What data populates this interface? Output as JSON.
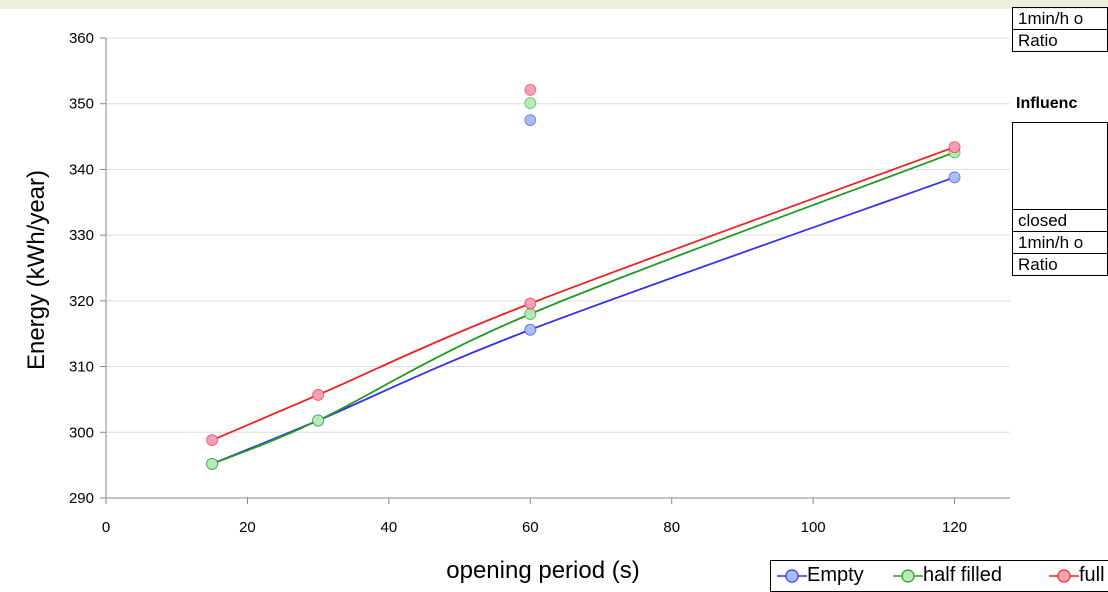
{
  "chart_data": {
    "type": "line",
    "xlabel": "opening period (s)",
    "ylabel": "Energy  (kWh/year)",
    "xlim": [
      0,
      140
    ],
    "ylim": [
      290,
      360
    ],
    "xticks": [
      0,
      20,
      40,
      60,
      80,
      100,
      120,
      140
    ],
    "yticks": [
      290,
      300,
      310,
      320,
      330,
      340,
      350,
      360
    ],
    "grid": "horizontal",
    "legend_position": "bottom-right",
    "x": [
      15,
      30,
      60,
      120
    ],
    "series": [
      {
        "name": "Empty",
        "values": [
          295.2,
          301.8,
          315.6,
          338.8
        ],
        "color": "#3333ee",
        "marker_fill": "#a6bdf5"
      },
      {
        "name": "half filled",
        "values": [
          295.2,
          301.8,
          318.0,
          342.6
        ],
        "color": "#229922",
        "marker_fill": "#b5ecb5"
      },
      {
        "name": "full",
        "values": [
          298.8,
          305.7,
          319.6,
          343.4
        ],
        "color": "#ee2222",
        "marker_fill": "#f5a0b8"
      }
    ],
    "extra_points": [
      {
        "series": "Empty",
        "x": 60,
        "y": 347.5
      },
      {
        "series": "half filled",
        "x": 60,
        "y": 350.1
      },
      {
        "series": "full",
        "x": 60,
        "y": 352.1
      }
    ]
  },
  "table_top": {
    "rows": [
      "1min/h o",
      "Ratio"
    ]
  },
  "table_influence": {
    "heading": "Influenc",
    "rows": [
      "closed",
      "1min/h o",
      "Ratio"
    ]
  },
  "legend": {
    "items": [
      "Empty",
      "half filled",
      "full"
    ]
  }
}
